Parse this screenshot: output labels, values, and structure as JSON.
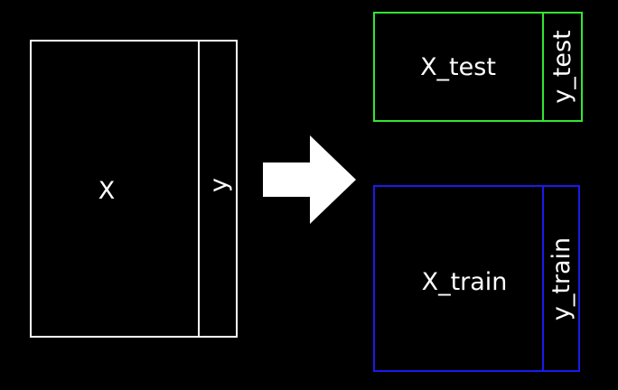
{
  "labels": {
    "full_features": "X",
    "full_target": "y",
    "test_features": "X_test",
    "test_target": "y_test",
    "train_features": "X_train",
    "train_target": "y_train"
  },
  "colors": {
    "background": "#000000",
    "full_data": "#ffffff",
    "test_split": "#33e633",
    "train_split": "#1a1aee",
    "arrow": "#ffffff",
    "text": "#ffffff"
  },
  "icons": {
    "split_arrow": "right-arrow-icon"
  }
}
